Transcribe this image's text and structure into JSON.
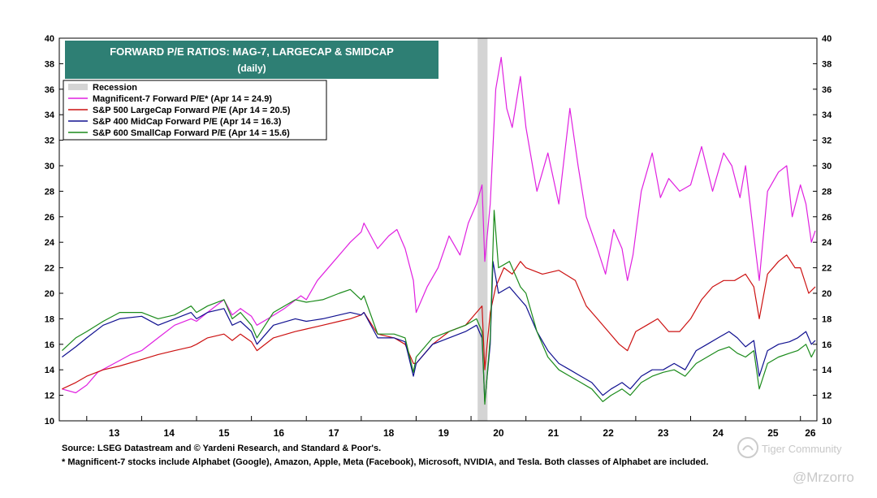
{
  "chart_data": {
    "type": "line",
    "title": "FORWARD P/E RATIOS: MAG-7, LARGECAP & SMIDCAP",
    "subtitle": "(daily)",
    "xlabel": "",
    "ylabel": "",
    "x_tick_labels": [
      "13",
      "14",
      "15",
      "16",
      "17",
      "18",
      "19",
      "20",
      "21",
      "22",
      "23",
      "24",
      "25",
      "26"
    ],
    "x_tick_years": [
      2013,
      2014,
      2015,
      2016,
      2017,
      2018,
      2019,
      2020,
      2021,
      2022,
      2023,
      2024,
      2025,
      2026
    ],
    "xlim": [
      2012.5,
      2026.3
    ],
    "ylim": [
      10,
      40
    ],
    "y_ticks": [
      10,
      12,
      14,
      16,
      18,
      20,
      22,
      24,
      26,
      28,
      30,
      32,
      34,
      36,
      38,
      40
    ],
    "y_axis_both_sides": true,
    "grid": false,
    "legend_position": "top-left",
    "recession": {
      "label": "Recession",
      "start": 2020.12,
      "end": 2020.3,
      "color": "#d4d4d4"
    },
    "series": [
      {
        "name": "Magnificent-7 Forward P/E* (Apr 14 = 24.9)",
        "color": "#e020e0",
        "x": [
          2012.55,
          2012.8,
          2013.0,
          2013.2,
          2013.5,
          2013.8,
          2014.0,
          2014.3,
          2014.6,
          2014.9,
          2015.0,
          2015.2,
          2015.5,
          2015.65,
          2015.8,
          2016.0,
          2016.1,
          2016.3,
          2016.6,
          2016.9,
          2017.0,
          2017.2,
          2017.5,
          2017.7,
          2017.8,
          2018.0,
          2018.05,
          2018.3,
          2018.5,
          2018.65,
          2018.8,
          2018.95,
          2019.0,
          2019.2,
          2019.4,
          2019.6,
          2019.8,
          2019.95,
          2020.1,
          2020.2,
          2020.25,
          2020.35,
          2020.45,
          2020.55,
          2020.65,
          2020.75,
          2020.9,
          2021.0,
          2021.2,
          2021.4,
          2021.6,
          2021.8,
          2021.95,
          2022.1,
          2022.3,
          2022.45,
          2022.6,
          2022.75,
          2022.85,
          2022.95,
          2023.1,
          2023.3,
          2023.45,
          2023.6,
          2023.8,
          2024.0,
          2024.2,
          2024.4,
          2024.6,
          2024.75,
          2024.9,
          2025.0,
          2025.15,
          2025.25,
          2025.4,
          2025.6,
          2025.75,
          2025.85,
          2026.0,
          2026.1,
          2026.2,
          2026.27
        ],
        "y": [
          12.5,
          12.2,
          12.8,
          13.8,
          14.5,
          15.2,
          15.5,
          16.5,
          17.5,
          18.0,
          17.8,
          18.5,
          19.5,
          18.3,
          18.8,
          18.2,
          17.5,
          18.0,
          18.8,
          19.8,
          19.5,
          21.0,
          22.5,
          23.5,
          24.0,
          24.8,
          25.5,
          23.5,
          24.5,
          25.0,
          23.5,
          21.0,
          18.5,
          20.5,
          22.0,
          24.5,
          23.0,
          25.5,
          27.0,
          28.5,
          22.5,
          27.0,
          36.0,
          38.5,
          34.5,
          33.0,
          37.0,
          33.0,
          28.0,
          31.0,
          27.0,
          34.5,
          30.0,
          26.0,
          23.5,
          21.5,
          25.0,
          23.5,
          21.0,
          23.0,
          28.0,
          31.0,
          27.5,
          29.0,
          28.0,
          28.5,
          31.5,
          28.0,
          31.0,
          30.0,
          27.5,
          30.0,
          24.5,
          21.0,
          28.0,
          29.5,
          30.0,
          26.0,
          28.5,
          27.0,
          24.0,
          24.9
        ]
      },
      {
        "name": "S&P 500 LargeCap Forward P/E (Apr 14 = 20.5)",
        "color": "#cc1111",
        "x": [
          2012.55,
          2012.8,
          2013.0,
          2013.3,
          2013.6,
          2014.0,
          2014.3,
          2014.6,
          2014.9,
          2015.0,
          2015.2,
          2015.5,
          2015.65,
          2015.8,
          2016.0,
          2016.1,
          2016.4,
          2016.8,
          2017.0,
          2017.3,
          2017.6,
          2017.8,
          2018.0,
          2018.05,
          2018.3,
          2018.6,
          2018.8,
          2018.95,
          2019.0,
          2019.3,
          2019.6,
          2019.9,
          2020.1,
          2020.2,
          2020.25,
          2020.35,
          2020.45,
          2020.6,
          2020.75,
          2020.9,
          2021.0,
          2021.3,
          2021.6,
          2021.9,
          2022.1,
          2022.3,
          2022.5,
          2022.7,
          2022.85,
          2023.0,
          2023.2,
          2023.4,
          2023.6,
          2023.8,
          2024.0,
          2024.2,
          2024.4,
          2024.6,
          2024.8,
          2025.0,
          2025.15,
          2025.25,
          2025.4,
          2025.6,
          2025.75,
          2025.9,
          2026.0,
          2026.15,
          2026.27
        ],
        "y": [
          12.5,
          13.0,
          13.5,
          14.0,
          14.3,
          14.8,
          15.2,
          15.5,
          15.8,
          16.0,
          16.5,
          16.8,
          16.3,
          16.8,
          16.2,
          15.5,
          16.5,
          17.0,
          17.2,
          17.5,
          17.8,
          18.0,
          18.3,
          18.5,
          16.8,
          16.5,
          16.0,
          14.5,
          14.5,
          16.0,
          17.0,
          17.5,
          18.5,
          19.0,
          14.0,
          18.5,
          20.5,
          22.0,
          21.5,
          22.5,
          22.0,
          21.5,
          21.8,
          21.0,
          19.0,
          18.0,
          17.0,
          16.0,
          15.5,
          17.0,
          17.5,
          18.0,
          17.0,
          17.0,
          18.0,
          19.5,
          20.5,
          21.0,
          21.0,
          21.5,
          20.5,
          18.0,
          21.5,
          22.5,
          23.0,
          22.0,
          22.0,
          20.0,
          20.5
        ]
      },
      {
        "name": "S&P 400 MidCap Forward P/E (Apr 14 = 16.3)",
        "color": "#101090",
        "x": [
          2012.55,
          2012.8,
          2013.0,
          2013.3,
          2013.6,
          2014.0,
          2014.3,
          2014.6,
          2014.9,
          2015.0,
          2015.2,
          2015.5,
          2015.65,
          2015.8,
          2016.0,
          2016.1,
          2016.4,
          2016.8,
          2017.0,
          2017.3,
          2017.6,
          2017.8,
          2018.0,
          2018.05,
          2018.3,
          2018.6,
          2018.8,
          2018.95,
          2019.0,
          2019.3,
          2019.6,
          2019.9,
          2020.1,
          2020.2,
          2020.25,
          2020.35,
          2020.4,
          2020.5,
          2020.7,
          2020.9,
          2021.0,
          2021.2,
          2021.4,
          2021.6,
          2021.8,
          2022.0,
          2022.2,
          2022.4,
          2022.55,
          2022.75,
          2022.9,
          2023.1,
          2023.3,
          2023.5,
          2023.7,
          2023.9,
          2024.1,
          2024.3,
          2024.5,
          2024.7,
          2024.85,
          2025.0,
          2025.15,
          2025.25,
          2025.4,
          2025.6,
          2025.8,
          2025.95,
          2026.1,
          2026.2,
          2026.27
        ],
        "y": [
          15.0,
          15.8,
          16.5,
          17.5,
          18.0,
          18.2,
          17.5,
          18.0,
          18.5,
          18.0,
          18.5,
          18.8,
          17.5,
          17.8,
          17.0,
          16.0,
          17.5,
          18.0,
          17.8,
          18.0,
          18.3,
          18.5,
          18.3,
          18.5,
          16.5,
          16.5,
          16.2,
          13.5,
          14.5,
          16.0,
          16.5,
          17.0,
          17.5,
          16.5,
          11.5,
          16.0,
          22.5,
          20.0,
          20.5,
          19.5,
          19.0,
          17.0,
          15.5,
          14.5,
          14.0,
          13.5,
          13.0,
          12.0,
          12.5,
          13.0,
          12.5,
          13.5,
          14.0,
          14.0,
          14.5,
          14.0,
          15.5,
          16.0,
          16.5,
          17.0,
          16.5,
          15.8,
          16.3,
          13.5,
          15.5,
          16.0,
          16.2,
          16.5,
          17.0,
          16.0,
          16.3
        ]
      },
      {
        "name": "S&P 600 SmallCap Forward P/E (Apr 14 = 15.6)",
        "color": "#1a8a1a",
        "x": [
          2012.55,
          2012.8,
          2013.0,
          2013.3,
          2013.6,
          2014.0,
          2014.3,
          2014.6,
          2014.9,
          2015.0,
          2015.2,
          2015.5,
          2015.65,
          2015.8,
          2016.0,
          2016.1,
          2016.4,
          2016.8,
          2017.0,
          2017.3,
          2017.6,
          2017.8,
          2018.0,
          2018.05,
          2018.3,
          2018.6,
          2018.8,
          2018.95,
          2019.0,
          2019.3,
          2019.6,
          2019.9,
          2020.1,
          2020.2,
          2020.25,
          2020.35,
          2020.42,
          2020.5,
          2020.7,
          2020.9,
          2021.0,
          2021.2,
          2021.4,
          2021.6,
          2021.8,
          2022.0,
          2022.2,
          2022.4,
          2022.55,
          2022.75,
          2022.9,
          2023.1,
          2023.3,
          2023.5,
          2023.7,
          2023.9,
          2024.1,
          2024.3,
          2024.5,
          2024.7,
          2024.85,
          2025.0,
          2025.15,
          2025.25,
          2025.4,
          2025.6,
          2025.8,
          2025.95,
          2026.1,
          2026.2,
          2026.27
        ],
        "y": [
          15.5,
          16.5,
          17.0,
          17.8,
          18.5,
          18.5,
          18.0,
          18.3,
          19.0,
          18.5,
          19.0,
          19.5,
          18.0,
          18.5,
          17.5,
          16.5,
          18.5,
          19.5,
          19.3,
          19.5,
          20.0,
          20.3,
          19.5,
          19.8,
          16.8,
          16.8,
          16.5,
          13.8,
          15.0,
          16.5,
          17.0,
          17.5,
          18.0,
          17.0,
          11.3,
          16.5,
          26.5,
          22.0,
          22.5,
          20.5,
          20.0,
          17.0,
          15.0,
          14.0,
          13.5,
          13.0,
          12.5,
          11.5,
          12.0,
          12.5,
          12.0,
          13.0,
          13.5,
          13.8,
          14.0,
          13.5,
          14.5,
          15.0,
          15.5,
          15.8,
          15.3,
          15.0,
          15.5,
          12.5,
          14.5,
          15.0,
          15.3,
          15.5,
          16.0,
          15.0,
          15.6
        ]
      }
    ]
  },
  "footer": {
    "source": "Source: LSEG Datastream and © Yardeni Research, and Standard & Poor's.",
    "note": "* Magnificent-7 stocks include Alphabet (Google), Amazon, Apple, Meta (Facebook), Microsoft, NVIDIA, and Tesla. Both classes of Alphabet are included."
  },
  "watermark": {
    "community": "Tiger Community",
    "handle": "@Mrzorro"
  },
  "colors": {
    "title_box": "#2e7f74",
    "title_text": "#ffffff",
    "recession": "#d4d4d4"
  }
}
